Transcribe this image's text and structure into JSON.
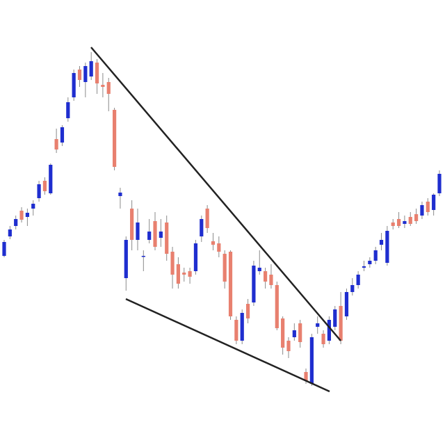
{
  "chart_data": {
    "type": "candlestick",
    "up_color": "#1f2ecf",
    "down_color": "#e8806f",
    "wick_color": "#8a8a8a",
    "ylim": [
      0,
      640
    ],
    "open": [
      272,
      300,
      315,
      337,
      328,
      340,
      355,
      380,
      362,
      440,
      435,
      470,
      500,
      540,
      522,
      530,
      550,
      518,
      522,
      482,
      358,
      240,
      340,
      295,
      271,
      295,
      322,
      298,
      320,
      278,
      260,
      248,
      250,
      250,
      300,
      340,
      293,
      290,
      275,
      278,
      180,
      150,
      203,
      205,
      250,
      250,
      245,
      230,
      182,
      150,
      155,
      175,
      105,
      88,
      170,
      160,
      150,
      170,
      200,
      185,
      220,
      230,
      255,
      260,
      265,
      288,
      262,
      320,
      325,
      318,
      328,
      332,
      330,
      350,
      338,
      362
    ],
    "high": [
      295,
      315,
      330,
      342,
      340,
      352,
      380,
      385,
      405,
      455,
      460,
      500,
      540,
      545,
      550,
      565,
      555,
      535,
      528,
      485,
      370,
      300,
      352,
      340,
      280,
      325,
      335,
      325,
      330,
      285,
      270,
      255,
      255,
      295,
      330,
      345,
      305,
      300,
      280,
      280,
      185,
      195,
      210,
      265,
      280,
      255,
      260,
      235,
      185,
      155,
      175,
      180,
      110,
      160,
      185,
      165,
      185,
      200,
      220,
      225,
      240,
      250,
      265,
      270,
      285,
      305,
      315,
      325,
      335,
      330,
      335,
      340,
      350,
      355,
      362,
      395
    ],
    "low": [
      270,
      296,
      310,
      320,
      315,
      330,
      350,
      360,
      360,
      420,
      430,
      465,
      495,
      515,
      500,
      525,
      505,
      500,
      480,
      395,
      340,
      222,
      280,
      280,
      250,
      290,
      280,
      285,
      265,
      225,
      225,
      235,
      232,
      245,
      292,
      305,
      280,
      270,
      225,
      180,
      145,
      145,
      175,
      200,
      245,
      225,
      225,
      165,
      130,
      125,
      150,
      140,
      88,
      85,
      160,
      140,
      145,
      165,
      145,
      180,
      215,
      225,
      250,
      255,
      260,
      280,
      258,
      310,
      312,
      312,
      315,
      318,
      325,
      330,
      330,
      358
    ],
    "close": [
      292,
      310,
      325,
      324,
      334,
      347,
      375,
      365,
      403,
      425,
      457,
      493,
      535,
      525,
      545,
      552,
      520,
      515,
      505,
      400,
      363,
      295,
      295,
      320,
      272,
      307,
      285,
      307,
      275,
      245,
      232,
      245,
      242,
      290,
      325,
      312,
      288,
      278,
      235,
      185,
      150,
      190,
      182,
      258,
      255,
      235,
      230,
      168,
      140,
      135,
      165,
      148,
      92,
      155,
      175,
      145,
      180,
      195,
      150,
      220,
      230,
      245,
      257,
      265,
      280,
      295,
      308,
      315,
      315,
      322,
      318,
      322,
      345,
      335,
      360,
      390
    ]
  }
}
